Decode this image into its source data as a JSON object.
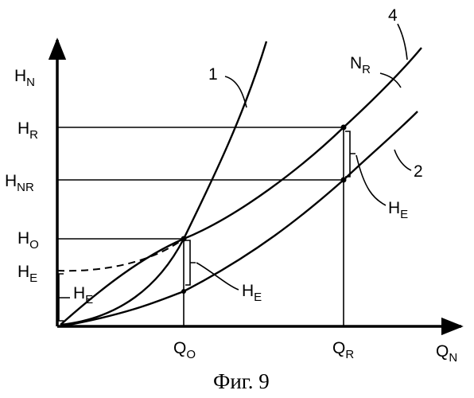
{
  "y_axis": {
    "main": "H",
    "sub": "N"
  },
  "x_axis": {
    "main": "Q",
    "sub": "N"
  },
  "y_ticks": [
    {
      "main": "H",
      "sub": "R"
    },
    {
      "main": "H",
      "sub": "NR"
    },
    {
      "main": "H",
      "sub": "O"
    },
    {
      "main": "H",
      "sub": "E"
    }
  ],
  "x_ticks": [
    {
      "main": "Q",
      "sub": "O"
    },
    {
      "main": "Q",
      "sub": "R"
    }
  ],
  "curve_labels": {
    "curve1": "1",
    "curve2": "2",
    "curve4": "4"
  },
  "curve4_name": {
    "main": "N",
    "sub": "R"
  },
  "bracket_labels": [
    {
      "main": "H",
      "sub": "E"
    },
    {
      "main": "H",
      "sub": "E"
    },
    {
      "main": "H",
      "sub": "E"
    }
  ],
  "caption": "Фиг. 9"
}
